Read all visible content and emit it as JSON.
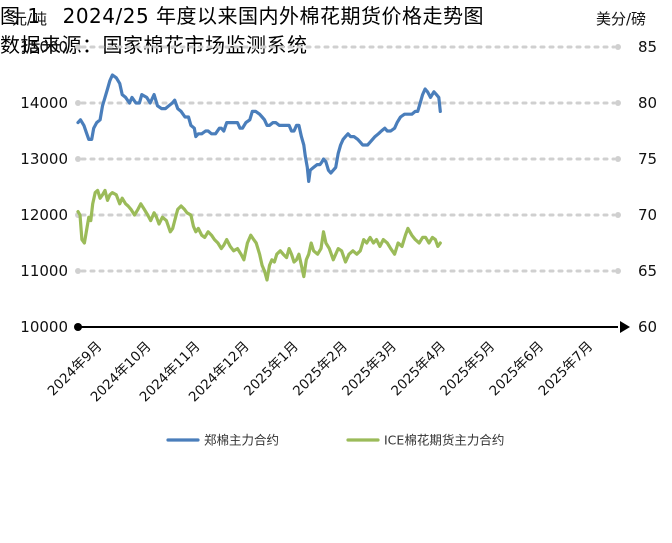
{
  "caption": {
    "figure_label": "图 1",
    "title": "2024/25 年度以来国内外棉花期货价格走势图",
    "source": "数据来源：国家棉花市场监测系统"
  },
  "chart_data": {
    "type": "line",
    "title": "",
    "y_left": {
      "unit_label": "元/吨",
      "min": 10000,
      "max": 15000,
      "ticks": [
        "10000",
        "11000",
        "12000",
        "13000",
        "14000",
        "15000"
      ]
    },
    "y_right": {
      "unit_label": "美分/磅",
      "min": 60,
      "max": 85,
      "ticks": [
        "60",
        "65",
        "70",
        "75",
        "80",
        "85"
      ]
    },
    "x_labels": [
      "2024年9月",
      "2024年10月",
      "2024年11月",
      "2024年12月",
      "2025年1月",
      "2025年2月",
      "2025年3月",
      "2025年4月",
      "2025年5月",
      "2025年6月",
      "2025年7月"
    ],
    "x_range_months": [
      0,
      11
    ],
    "grid": "horizontal-dashed",
    "legend_position": "bottom",
    "series": [
      {
        "name": "郑棉主力合约",
        "axis": "left",
        "color": "#4a7ebb",
        "points": [
          [
            0.0,
            13650
          ],
          [
            0.05,
            13700
          ],
          [
            0.12,
            13600
          ],
          [
            0.18,
            13450
          ],
          [
            0.22,
            13350
          ],
          [
            0.28,
            13350
          ],
          [
            0.32,
            13550
          ],
          [
            0.38,
            13650
          ],
          [
            0.45,
            13700
          ],
          [
            0.5,
            13950
          ],
          [
            0.55,
            14100
          ],
          [
            0.6,
            14250
          ],
          [
            0.65,
            14400
          ],
          [
            0.7,
            14500
          ],
          [
            0.78,
            14450
          ],
          [
            0.85,
            14350
          ],
          [
            0.9,
            14150
          ],
          [
            0.97,
            14100
          ],
          [
            1.05,
            14000
          ],
          [
            1.1,
            14100
          ],
          [
            1.18,
            14000
          ],
          [
            1.25,
            14000
          ],
          [
            1.3,
            14150
          ],
          [
            1.4,
            14100
          ],
          [
            1.47,
            14000
          ],
          [
            1.55,
            14150
          ],
          [
            1.62,
            13950
          ],
          [
            1.7,
            13900
          ],
          [
            1.78,
            13900
          ],
          [
            1.85,
            13950
          ],
          [
            1.92,
            14000
          ],
          [
            1.97,
            14050
          ],
          [
            2.03,
            13900
          ],
          [
            2.1,
            13850
          ],
          [
            2.18,
            13750
          ],
          [
            2.25,
            13750
          ],
          [
            2.3,
            13600
          ],
          [
            2.37,
            13550
          ],
          [
            2.4,
            13400
          ],
          [
            2.45,
            13450
          ],
          [
            2.52,
            13450
          ],
          [
            2.6,
            13500
          ],
          [
            2.65,
            13500
          ],
          [
            2.72,
            13450
          ],
          [
            2.8,
            13450
          ],
          [
            2.88,
            13550
          ],
          [
            2.92,
            13550
          ],
          [
            2.97,
            13500
          ],
          [
            3.03,
            13650
          ],
          [
            3.1,
            13650
          ],
          [
            3.18,
            13650
          ],
          [
            3.25,
            13650
          ],
          [
            3.3,
            13550
          ],
          [
            3.35,
            13550
          ],
          [
            3.42,
            13650
          ],
          [
            3.5,
            13700
          ],
          [
            3.55,
            13850
          ],
          [
            3.62,
            13850
          ],
          [
            3.7,
            13800
          ],
          [
            3.75,
            13750
          ],
          [
            3.8,
            13700
          ],
          [
            3.85,
            13600
          ],
          [
            3.9,
            13600
          ],
          [
            3.97,
            13650
          ],
          [
            4.03,
            13650
          ],
          [
            4.1,
            13600
          ],
          [
            4.18,
            13600
          ],
          [
            4.25,
            13600
          ],
          [
            4.3,
            13600
          ],
          [
            4.35,
            13500
          ],
          [
            4.4,
            13500
          ],
          [
            4.45,
            13600
          ],
          [
            4.5,
            13600
          ],
          [
            4.55,
            13400
          ],
          [
            4.6,
            13250
          ],
          [
            4.63,
            13050
          ],
          [
            4.67,
            12850
          ],
          [
            4.7,
            12600
          ],
          [
            4.73,
            12800
          ],
          [
            4.8,
            12850
          ],
          [
            4.87,
            12900
          ],
          [
            4.93,
            12900
          ],
          [
            4.97,
            12950
          ],
          [
            5.0,
            13000
          ],
          [
            5.05,
            12950
          ],
          [
            5.1,
            12800
          ],
          [
            5.15,
            12750
          ],
          [
            5.2,
            12800
          ],
          [
            5.25,
            12850
          ],
          [
            5.3,
            13100
          ],
          [
            5.35,
            13250
          ],
          [
            5.4,
            13350
          ],
          [
            5.45,
            13400
          ],
          [
            5.5,
            13450
          ],
          [
            5.55,
            13400
          ],
          [
            5.62,
            13400
          ],
          [
            5.7,
            13350
          ],
          [
            5.75,
            13300
          ],
          [
            5.8,
            13250
          ],
          [
            5.85,
            13250
          ],
          [
            5.9,
            13250
          ],
          [
            5.95,
            13300
          ],
          [
            6.0,
            13350
          ],
          [
            6.05,
            13400
          ],
          [
            6.12,
            13450
          ],
          [
            6.18,
            13500
          ],
          [
            6.25,
            13550
          ],
          [
            6.3,
            13500
          ],
          [
            6.37,
            13500
          ],
          [
            6.45,
            13550
          ],
          [
            6.5,
            13650
          ],
          [
            6.57,
            13750
          ],
          [
            6.65,
            13800
          ],
          [
            6.72,
            13800
          ],
          [
            6.8,
            13800
          ],
          [
            6.87,
            13850
          ],
          [
            6.92,
            13850
          ],
          [
            6.97,
            14000
          ],
          [
            7.02,
            14150
          ],
          [
            7.07,
            14250
          ],
          [
            7.12,
            14200
          ],
          [
            7.18,
            14100
          ],
          [
            7.25,
            14200
          ],
          [
            7.3,
            14150
          ],
          [
            7.35,
            14100
          ],
          [
            7.38,
            13850
          ]
        ]
      },
      {
        "name": "ICE棉花期货主力合约",
        "axis": "right",
        "color": "#9bbb59",
        "points": [
          [
            0.0,
            70.3
          ],
          [
            0.04,
            70.0
          ],
          [
            0.08,
            67.8
          ],
          [
            0.13,
            67.5
          ],
          [
            0.17,
            68.5
          ],
          [
            0.22,
            69.8
          ],
          [
            0.26,
            69.5
          ],
          [
            0.3,
            71.0
          ],
          [
            0.35,
            72.0
          ],
          [
            0.4,
            72.2
          ],
          [
            0.45,
            71.5
          ],
          [
            0.5,
            71.8
          ],
          [
            0.55,
            72.2
          ],
          [
            0.6,
            71.3
          ],
          [
            0.65,
            71.8
          ],
          [
            0.7,
            72.0
          ],
          [
            0.78,
            71.8
          ],
          [
            0.85,
            71.0
          ],
          [
            0.9,
            71.5
          ],
          [
            0.97,
            71.0
          ],
          [
            1.02,
            70.8
          ],
          [
            1.08,
            70.5
          ],
          [
            1.15,
            70.0
          ],
          [
            1.22,
            70.5
          ],
          [
            1.28,
            71.0
          ],
          [
            1.35,
            70.5
          ],
          [
            1.42,
            70.0
          ],
          [
            1.48,
            69.5
          ],
          [
            1.55,
            70.2
          ],
          [
            1.6,
            69.8
          ],
          [
            1.65,
            69.2
          ],
          [
            1.72,
            69.8
          ],
          [
            1.8,
            69.5
          ],
          [
            1.88,
            68.5
          ],
          [
            1.93,
            68.8
          ],
          [
            1.97,
            69.5
          ],
          [
            2.03,
            70.5
          ],
          [
            2.1,
            70.8
          ],
          [
            2.17,
            70.5
          ],
          [
            2.22,
            70.2
          ],
          [
            2.3,
            70.0
          ],
          [
            2.35,
            69.0
          ],
          [
            2.4,
            68.5
          ],
          [
            2.45,
            68.8
          ],
          [
            2.52,
            68.2
          ],
          [
            2.58,
            68.0
          ],
          [
            2.65,
            68.5
          ],
          [
            2.72,
            68.2
          ],
          [
            2.78,
            67.8
          ],
          [
            2.85,
            67.5
          ],
          [
            2.92,
            67.0
          ],
          [
            2.97,
            67.3
          ],
          [
            3.03,
            67.8
          ],
          [
            3.1,
            67.2
          ],
          [
            3.17,
            66.8
          ],
          [
            3.25,
            67.0
          ],
          [
            3.32,
            66.5
          ],
          [
            3.38,
            66.0
          ],
          [
            3.45,
            67.5
          ],
          [
            3.52,
            68.2
          ],
          [
            3.58,
            67.8
          ],
          [
            3.63,
            67.5
          ],
          [
            3.7,
            66.5
          ],
          [
            3.75,
            65.5
          ],
          [
            3.8,
            65.0
          ],
          [
            3.85,
            64.2
          ],
          [
            3.9,
            65.5
          ],
          [
            3.95,
            66.0
          ],
          [
            4.0,
            65.8
          ],
          [
            4.05,
            66.5
          ],
          [
            4.12,
            66.8
          ],
          [
            4.18,
            66.5
          ],
          [
            4.25,
            66.2
          ],
          [
            4.3,
            67.0
          ],
          [
            4.35,
            66.5
          ],
          [
            4.4,
            65.8
          ],
          [
            4.45,
            66.0
          ],
          [
            4.5,
            66.5
          ],
          [
            4.55,
            65.5
          ],
          [
            4.6,
            64.5
          ],
          [
            4.65,
            66.0
          ],
          [
            4.7,
            66.5
          ],
          [
            4.75,
            67.5
          ],
          [
            4.8,
            66.8
          ],
          [
            4.88,
            66.5
          ],
          [
            4.95,
            67.0
          ],
          [
            5.0,
            68.5
          ],
          [
            5.05,
            67.5
          ],
          [
            5.12,
            67.0
          ],
          [
            5.2,
            66.0
          ],
          [
            5.25,
            66.5
          ],
          [
            5.3,
            67.0
          ],
          [
            5.37,
            66.8
          ],
          [
            5.45,
            65.8
          ],
          [
            5.52,
            66.5
          ],
          [
            5.6,
            66.8
          ],
          [
            5.68,
            66.5
          ],
          [
            5.75,
            66.8
          ],
          [
            5.82,
            67.8
          ],
          [
            5.88,
            67.5
          ],
          [
            5.95,
            68.0
          ],
          [
            6.02,
            67.5
          ],
          [
            6.08,
            67.8
          ],
          [
            6.15,
            67.2
          ],
          [
            6.22,
            67.8
          ],
          [
            6.3,
            67.5
          ],
          [
            6.37,
            67.0
          ],
          [
            6.45,
            66.5
          ],
          [
            6.52,
            67.5
          ],
          [
            6.6,
            67.2
          ],
          [
            6.67,
            68.2
          ],
          [
            6.72,
            68.8
          ],
          [
            6.8,
            68.2
          ],
          [
            6.87,
            67.8
          ],
          [
            6.95,
            67.5
          ],
          [
            7.02,
            68.0
          ],
          [
            7.08,
            68.0
          ],
          [
            7.15,
            67.5
          ],
          [
            7.22,
            68.0
          ],
          [
            7.28,
            67.8
          ],
          [
            7.33,
            67.2
          ],
          [
            7.38,
            67.5
          ]
        ]
      }
    ]
  }
}
